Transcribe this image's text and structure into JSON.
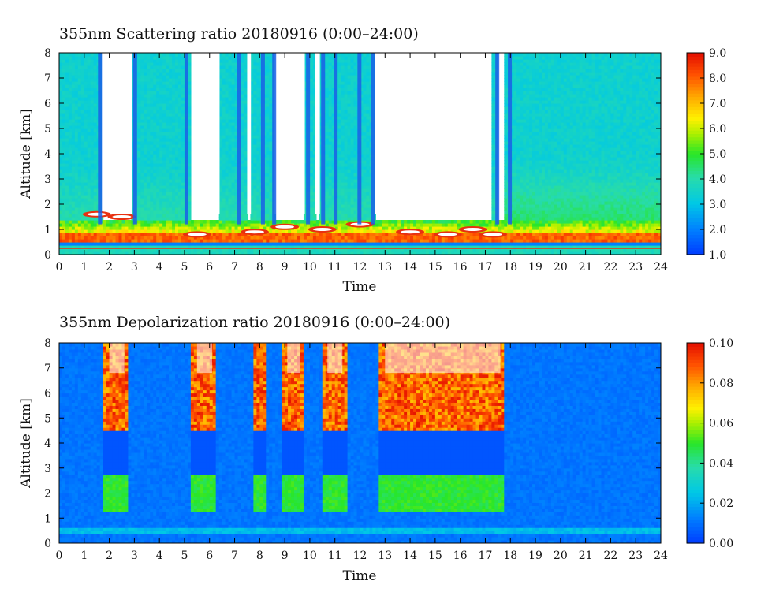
{
  "panels": [
    {
      "title": "355nm Scattering ratio  20180916 (0:00–24:00)",
      "xlabel": "Time",
      "ylabel": "Altitude [km]",
      "colorbar": {
        "min": 1.0,
        "max": 9.0,
        "ticks": [
          "1.0",
          "2.0",
          "3.0",
          "4.0",
          "5.0",
          "6.0",
          "7.0",
          "8.0",
          "9.0"
        ]
      }
    },
    {
      "title": "355nm Depolarization ratio  20180916 (0:00–24:00)",
      "xlabel": "Time",
      "ylabel": "Altitude [km]",
      "colorbar": {
        "min": 0.0,
        "max": 0.1,
        "ticks": [
          "0.00",
          "0.02",
          "0.04",
          "0.06",
          "0.08",
          "0.10"
        ]
      }
    }
  ],
  "chart_data": [
    {
      "type": "heatmap",
      "title": "355nm Scattering ratio  20180916 (0:00–24:00)",
      "xlabel": "Time",
      "ylabel": "Altitude [km]",
      "xlim": [
        0,
        24
      ],
      "ylim": [
        0,
        8
      ],
      "x_ticks": [
        "0",
        "1",
        "2",
        "3",
        "4",
        "5",
        "6",
        "7",
        "8",
        "9",
        "10",
        "11",
        "12",
        "13",
        "14",
        "15",
        "16",
        "17",
        "18",
        "19",
        "20",
        "21",
        "22",
        "23",
        "24"
      ],
      "y_ticks": [
        "0",
        "1",
        "2",
        "3",
        "4",
        "5",
        "6",
        "7",
        "8"
      ],
      "colorbar_range": [
        1.0,
        9.0
      ],
      "colorbar_ticks": [
        "1.0",
        "2.0",
        "3.0",
        "4.0",
        "5.0",
        "6.0",
        "7.0",
        "8.0",
        "9.0"
      ],
      "no_data_gaps_hours": [
        [
          1.7,
          2.9
        ],
        [
          5.3,
          6.4
        ],
        [
          7.5,
          7.65
        ],
        [
          8.6,
          9.8
        ],
        [
          10.2,
          10.4
        ],
        [
          12.6,
          17.2
        ],
        [
          17.5,
          17.7
        ]
      ],
      "cloud_base_km": [
        [
          1.5,
          1.6
        ],
        [
          2.5,
          1.5
        ],
        [
          5.5,
          0.8
        ],
        [
          7.8,
          0.9
        ],
        [
          9.0,
          1.1
        ],
        [
          10.5,
          1.0
        ],
        [
          12.0,
          1.2
        ],
        [
          14.0,
          0.9
        ],
        [
          15.5,
          0.8
        ],
        [
          16.5,
          1.0
        ],
        [
          17.3,
          0.8
        ]
      ],
      "boundary_layer_top_km": 0.9
    },
    {
      "type": "heatmap",
      "title": "355nm Depolarization ratio  20180916 (0:00–24:00)",
      "xlabel": "Time",
      "ylabel": "Altitude [km]",
      "xlim": [
        0,
        24
      ],
      "ylim": [
        0,
        8
      ],
      "x_ticks": [
        "0",
        "1",
        "2",
        "3",
        "4",
        "5",
        "6",
        "7",
        "8",
        "9",
        "10",
        "11",
        "12",
        "13",
        "14",
        "15",
        "16",
        "17",
        "18",
        "19",
        "20",
        "21",
        "22",
        "23",
        "24"
      ],
      "y_ticks": [
        "0",
        "1",
        "2",
        "3",
        "4",
        "5",
        "6",
        "7",
        "8"
      ],
      "colorbar_range": [
        0.0,
        0.1
      ],
      "colorbar_ticks": [
        "0.00",
        "0.02",
        "0.04",
        "0.06",
        "0.08",
        "0.10"
      ],
      "high_depol_regions_hours": [
        [
          1.8,
          2.8
        ],
        [
          5.3,
          6.3
        ],
        [
          7.8,
          8.2
        ],
        [
          8.9,
          9.8
        ],
        [
          10.5,
          11.5
        ],
        [
          12.8,
          17.8
        ]
      ],
      "background_value": 0.01
    }
  ]
}
